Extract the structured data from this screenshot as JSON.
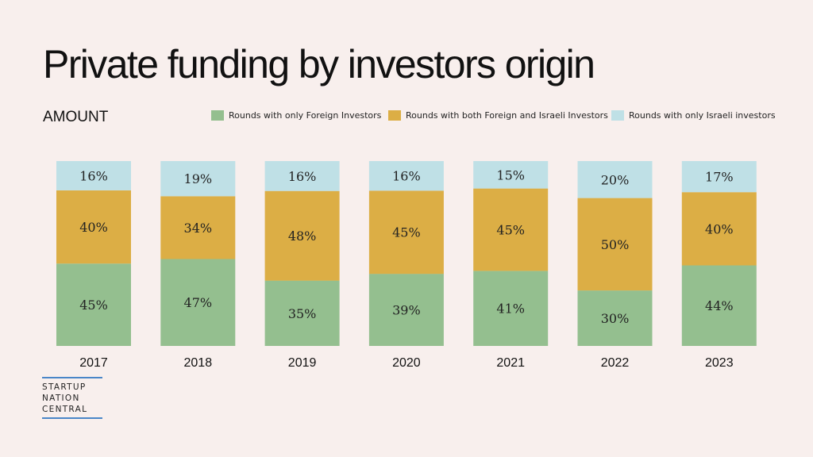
{
  "title": "Private funding by investors origin",
  "subtitle": "AMOUNT",
  "colors": {
    "foreign": "#94bf8f",
    "both": "#dcae45",
    "israeli": "#bfe0e6",
    "background": "#f8efed"
  },
  "legend": [
    {
      "label": "Rounds with only Foreign Investors",
      "color": "#94bf8f"
    },
    {
      "label": "Rounds with both Foreign and Israeli Investors",
      "color": "#dcae45"
    },
    {
      "label": "Rounds with only Israeli investors",
      "color": "#bfe0e6"
    }
  ],
  "chart_data": {
    "type": "bar",
    "stacked": true,
    "categories": [
      "2017",
      "2018",
      "2019",
      "2020",
      "2021",
      "2022",
      "2023"
    ],
    "series": [
      {
        "name": "Rounds with only Foreign Investors",
        "values": [
          45,
          47,
          35,
          39,
          41,
          30,
          44
        ],
        "labels": [
          "45%",
          "47%",
          "35%",
          "39%",
          "41%",
          "30%",
          "44%"
        ]
      },
      {
        "name": "Rounds with both Foreign and Israeli Investors",
        "values": [
          40,
          34,
          48,
          45,
          45,
          50,
          40
        ],
        "labels": [
          "40%",
          "34%",
          "48%",
          "45%",
          "45%",
          "50%",
          "40%"
        ]
      },
      {
        "name": "Rounds with only Israeli investors",
        "values": [
          16,
          19,
          16,
          16,
          15,
          20,
          17
        ],
        "labels": [
          "16%",
          "19%",
          "16%",
          "16%",
          "15%",
          "20%",
          "17%"
        ]
      }
    ],
    "ylim": [
      0,
      100
    ]
  },
  "logo": {
    "lines": [
      "STARTUP",
      "NATION",
      "CENTRAL"
    ]
  }
}
